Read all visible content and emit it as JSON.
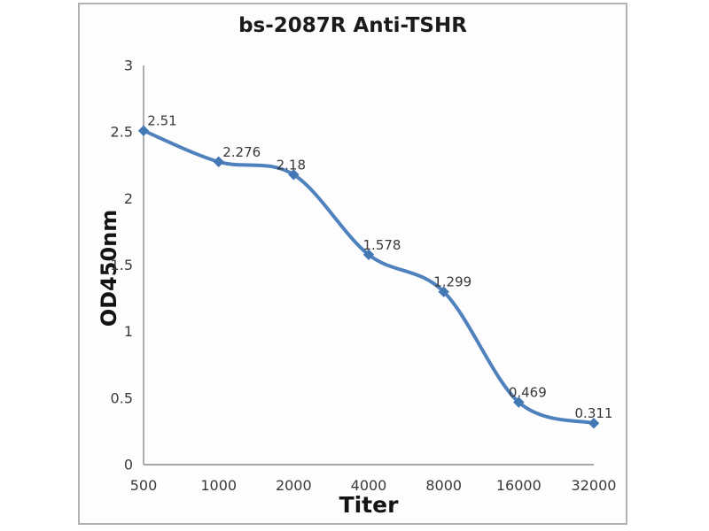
{
  "image": {
    "background": "#ffffff",
    "frame_border_color": "#b0b3b5",
    "frame_background": "#fdfdfe"
  },
  "chart": {
    "title": "bs-2087R Anti-TSHR",
    "x_axis_label": "Titer",
    "y_axis_label": "OD450nm"
  },
  "chart_data": {
    "type": "line",
    "title": "bs-2087R Anti-TSHR",
    "xlabel": "Titer",
    "ylabel": "OD450nm",
    "categories": [
      "500",
      "1000",
      "2000",
      "4000",
      "8000",
      "16000",
      "32000"
    ],
    "series": [
      {
        "name": "bs-2087R Anti-TSHR",
        "values": [
          2.51,
          2.276,
          2.18,
          1.578,
          1.299,
          0.469,
          0.311
        ]
      }
    ],
    "point_labels": [
      "2.51",
      "2.276",
      "2.18",
      "1.578",
      "1.299",
      "0.469",
      "0.311"
    ],
    "y_ticks": [
      3,
      2.5,
      2,
      1.5,
      1,
      0.5,
      0
    ],
    "ylim": [
      0,
      3
    ],
    "x_scale": "categorical-doubling",
    "grid": false,
    "smooth_line": true,
    "legend": "none",
    "line_color": "#4f81bd",
    "marker_shape": "diamond",
    "marker_color": "#4478b4",
    "axis_color": "#a6a6a6",
    "tick_text_color": "#3a3a3a",
    "point_label_color": "#383838",
    "title_color": "#1b1b1b"
  }
}
